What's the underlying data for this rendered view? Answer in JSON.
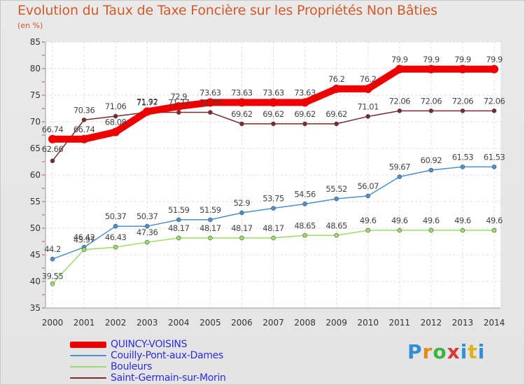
{
  "chart_data": {
    "type": "line",
    "title": "Evolution du Taux de Taxe Foncière sur les Propriétés Non Bâties",
    "ylabel": "(en %)",
    "xlabel": "",
    "ylim": [
      35,
      85
    ],
    "yticks": [
      35,
      40,
      45,
      50,
      55,
      60,
      65,
      70,
      75,
      80,
      85
    ],
    "x": [
      "2000",
      "2001",
      "2002",
      "2003",
      "2004",
      "2005",
      "2006",
      "2007",
      "2008",
      "2009",
      "2010",
      "2011",
      "2012",
      "2013",
      "2014"
    ],
    "series": [
      {
        "name": "QUINCY-VOISINS",
        "color": "#ee0000",
        "values": [
          66.74,
          66.74,
          68.08,
          71.92,
          72.9,
          73.63,
          73.63,
          73.63,
          73.63,
          76.2,
          76.2,
          79.9,
          79.9,
          79.9,
          79.9
        ],
        "labels": [
          "66.74",
          "66.74",
          "68.08",
          "71.92",
          "72.9",
          "73.63",
          "73.63",
          "73.63",
          "73.63",
          "76.2",
          "76.2",
          "79.9",
          "79.9",
          "79.9",
          "79.9"
        ]
      },
      {
        "name": "Couilly-Pont-aux-Dames",
        "color": "#4a90d0",
        "values": [
          44.2,
          46.42,
          50.37,
          50.37,
          51.59,
          51.59,
          52.9,
          53.75,
          54.56,
          55.52,
          56.07,
          59.67,
          60.92,
          61.53,
          61.53
        ],
        "labels": [
          "44.2",
          "46.42",
          "50.37",
          "50.37",
          "51.59",
          "51.59",
          "52.9",
          "53.75",
          "54.56",
          "55.52",
          "56.07",
          "59.67",
          "60.92",
          "61.53",
          "61.53"
        ]
      },
      {
        "name": "Bouleurs",
        "color": "#99dd66",
        "values": [
          39.55,
          45.97,
          46.43,
          47.36,
          48.17,
          48.17,
          48.17,
          48.17,
          48.65,
          48.65,
          49.6,
          49.6,
          49.6,
          49.6,
          49.6
        ],
        "labels": [
          "39.55",
          "45.97",
          "46.43",
          "47.36",
          "48.17",
          "48.17",
          "48.17",
          "48.17",
          "48.65",
          "48.65",
          "49.6",
          "49.6",
          "49.6",
          "49.6",
          "49.6"
        ]
      },
      {
        "name": "Saint-Germain-sur-Morin",
        "color": "#7a2a2a",
        "values": [
          62.66,
          70.36,
          71.06,
          71.77,
          71.77,
          71.77,
          69.62,
          69.62,
          69.62,
          69.62,
          71.01,
          72.06,
          72.06,
          72.06,
          72.06
        ],
        "labels": [
          "62.66",
          "70.36",
          "71.06",
          "71.77",
          "71.77",
          "71.77",
          "69.62",
          "69.62",
          "69.62",
          "69.62",
          "71.01",
          "72.06",
          "72.06",
          "72.06",
          "72.06"
        ]
      }
    ],
    "legend_position": "bottom-left"
  },
  "logo": {
    "text": "Proxiti"
  }
}
